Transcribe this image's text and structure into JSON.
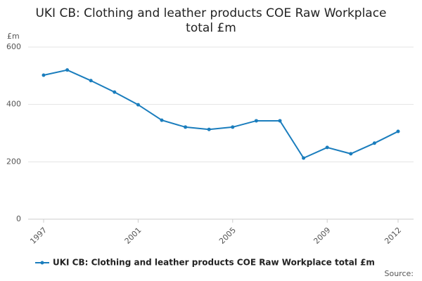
{
  "chart_data": {
    "type": "line",
    "title": "UKI CB: Clothing and leather products COE Raw Workplace total £m",
    "y_label": "£m",
    "x": [
      1997,
      1998,
      1999,
      2000,
      2001,
      2002,
      2003,
      2004,
      2005,
      2006,
      2007,
      2008,
      2009,
      2010,
      2011,
      2012
    ],
    "series": [
      {
        "name": "UKI CB: Clothing and leather products COE Raw Workplace total £m",
        "color": "#1a7dbd",
        "values": [
          502,
          520,
          483,
          443,
          399,
          345,
          321,
          313,
          321,
          343,
          343,
          213,
          250,
          228,
          265,
          306
        ]
      }
    ],
    "xlim": [
      1997,
      2012
    ],
    "xticks": [
      1997,
      2001,
      2005,
      2009,
      2012
    ],
    "ylim": [
      0,
      600
    ],
    "yticks": [
      0,
      200,
      400,
      600
    ],
    "grid": true,
    "legend": "bottom",
    "source": "Source:"
  }
}
